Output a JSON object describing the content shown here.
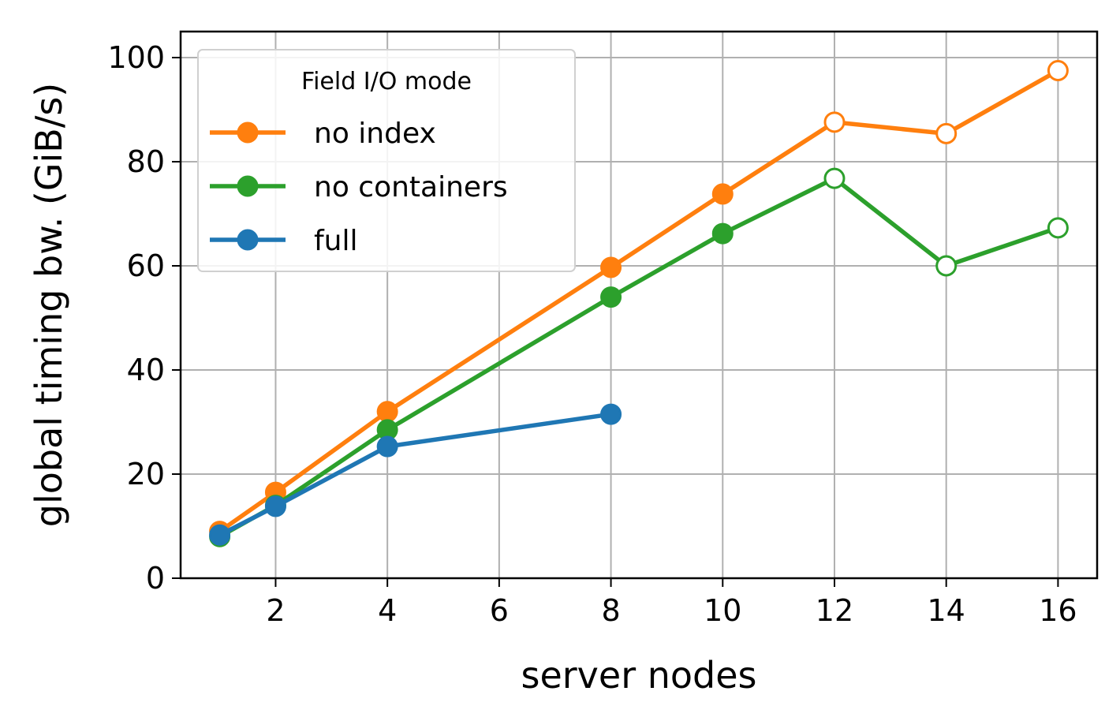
{
  "chart_data": {
    "type": "line",
    "xlabel": "server nodes",
    "ylabel": "global timing bw. (GiB/s)",
    "xlim": [
      0.3,
      16.7
    ],
    "ylim": [
      0,
      105
    ],
    "xticks": [
      2,
      4,
      6,
      8,
      10,
      12,
      14,
      16
    ],
    "yticks": [
      0,
      20,
      40,
      60,
      80,
      100
    ],
    "grid": true,
    "legend": {
      "title": "Field I/O mode",
      "placement": "top-left"
    },
    "series": [
      {
        "name": "no index",
        "color": "#ff7f0e",
        "x": [
          1,
          2,
          4,
          8,
          10,
          12,
          14,
          16
        ],
        "values": [
          9,
          16.5,
          32,
          59.7,
          73.8,
          87.6,
          85.4,
          97.5
        ],
        "hollow": [
          false,
          false,
          false,
          false,
          false,
          true,
          true,
          true
        ]
      },
      {
        "name": "no containers",
        "color": "#2ca02c",
        "x": [
          1,
          2,
          4,
          8,
          10,
          12,
          14,
          16
        ],
        "values": [
          8,
          14,
          28.5,
          54,
          66.2,
          76.8,
          60,
          67.3
        ],
        "hollow": [
          false,
          false,
          false,
          false,
          false,
          true,
          true,
          true
        ]
      },
      {
        "name": "full",
        "color": "#1f77b4",
        "x": [
          1,
          2,
          4,
          8
        ],
        "values": [
          8.3,
          13.8,
          25.3,
          31.5
        ],
        "hollow": [
          false,
          false,
          false,
          false
        ]
      }
    ]
  }
}
